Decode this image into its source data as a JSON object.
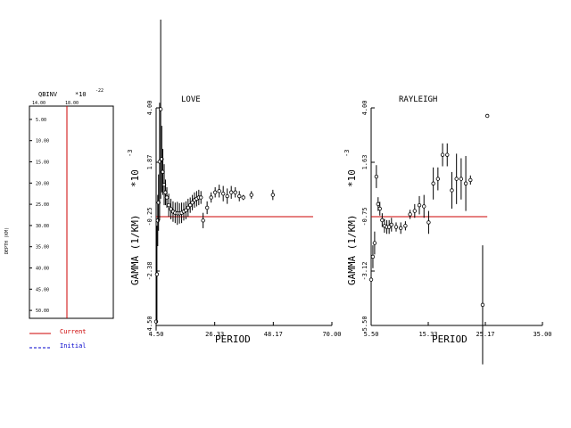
{
  "colors": {
    "current": "#cc0000",
    "initial": "#0000cc",
    "axis": "#000000"
  },
  "qbinv": {
    "title": "QBINV",
    "exponent": "*10",
    "exponent_power": "-22",
    "x_ticks": [
      "14.00",
      "18.00"
    ],
    "ylabel": "DEPTH (KM)",
    "y_ticks": [
      "5.00",
      "10.00",
      "15.00",
      "20.00",
      "25.00",
      "30.00",
      "35.00",
      "40.00",
      "45.00",
      "50.00"
    ]
  },
  "legend": {
    "current": "Current",
    "initial": "Initial"
  },
  "chart_data": [
    {
      "type": "line",
      "title": "QBINV",
      "xlabel": "",
      "ylabel": "DEPTH (KM)",
      "xlim": [
        14.0,
        20.0
      ],
      "ylim": [
        50.0,
        0.0
      ],
      "series": [
        {
          "name": "Current",
          "x": [
            18.0,
            18.0
          ],
          "y": [
            0.0,
            50.0
          ]
        }
      ]
    },
    {
      "type": "scatter",
      "title": "LOVE",
      "xlabel": "PERIOD",
      "ylabel": "GAMMA (1/KM)",
      "y_exponent": "*10",
      "y_exponent_power": "-3",
      "xlim": [
        4.5,
        70.0
      ],
      "ylim": [
        -4.5,
        4.0
      ],
      "x_ticks": [
        "4.50",
        "26.33",
        "48.17",
        "70.00"
      ],
      "y_ticks": [
        "-4.50",
        "-2.38",
        "-0.25",
        "1.87",
        "4.00"
      ],
      "observed": [
        {
          "x": 4.5,
          "y": -4.35,
          "e": 0.35
        },
        {
          "x": 4.8,
          "y": -2.5,
          "e": 1.9
        },
        {
          "x": 5.1,
          "y": -0.4,
          "e": 1.0
        },
        {
          "x": 5.4,
          "y": 0.3,
          "e": 1.1
        },
        {
          "x": 5.8,
          "y": 1.9,
          "e": 2.3
        },
        {
          "x": 6.2,
          "y": 3.95,
          "e": 3.5
        },
        {
          "x": 6.6,
          "y": 2.0,
          "e": 1.3
        },
        {
          "x": 7.0,
          "y": 1.5,
          "e": 0.9
        },
        {
          "x": 7.5,
          "y": 1.0,
          "e": 0.8
        },
        {
          "x": 8.0,
          "y": 0.7,
          "e": 0.5
        },
        {
          "x": 8.5,
          "y": 0.5,
          "e": 0.4
        },
        {
          "x": 9.2,
          "y": 0.2,
          "e": 0.45
        },
        {
          "x": 10.0,
          "y": 0.05,
          "e": 0.4
        },
        {
          "x": 10.8,
          "y": -0.05,
          "e": 0.4
        },
        {
          "x": 11.6,
          "y": -0.1,
          "e": 0.4
        },
        {
          "x": 12.4,
          "y": -0.12,
          "e": 0.45
        },
        {
          "x": 13.2,
          "y": -0.12,
          "e": 0.4
        },
        {
          "x": 14.0,
          "y": -0.1,
          "e": 0.4
        },
        {
          "x": 14.8,
          "y": -0.05,
          "e": 0.35
        },
        {
          "x": 15.6,
          "y": 0.0,
          "e": 0.35
        },
        {
          "x": 16.4,
          "y": 0.1,
          "e": 0.35
        },
        {
          "x": 17.2,
          "y": 0.2,
          "e": 0.3
        },
        {
          "x": 18.0,
          "y": 0.3,
          "e": 0.3
        },
        {
          "x": 18.8,
          "y": 0.4,
          "e": 0.3
        },
        {
          "x": 19.6,
          "y": 0.45,
          "e": 0.3
        },
        {
          "x": 20.4,
          "y": 0.5,
          "e": 0.3
        },
        {
          "x": 21.2,
          "y": 0.5,
          "e": 0.25
        },
        {
          "x": 22.0,
          "y": -0.4,
          "e": 0.3
        },
        {
          "x": 23.5,
          "y": 0.1,
          "e": 0.25
        },
        {
          "x": 25.0,
          "y": 0.5,
          "e": 0.2
        },
        {
          "x": 26.5,
          "y": 0.7,
          "e": 0.2
        },
        {
          "x": 28.0,
          "y": 0.75,
          "e": 0.25
        },
        {
          "x": 29.5,
          "y": 0.65,
          "e": 0.3
        },
        {
          "x": 31.0,
          "y": 0.55,
          "e": 0.3
        },
        {
          "x": 32.5,
          "y": 0.7,
          "e": 0.25
        },
        {
          "x": 34.0,
          "y": 0.7,
          "e": 0.2
        },
        {
          "x": 35.5,
          "y": 0.55,
          "e": 0.2
        },
        {
          "x": 37.0,
          "y": 0.5,
          "e": 0.1
        },
        {
          "x": 40.0,
          "y": 0.6,
          "e": 0.15
        },
        {
          "x": 48.0,
          "y": 0.6,
          "e": 0.2
        }
      ],
      "series": [
        {
          "name": "Current",
          "x": [
            4.5,
            63.0
          ],
          "y": [
            -0.25,
            -0.25
          ]
        }
      ]
    },
    {
      "type": "scatter",
      "title": "RAYLEIGH",
      "xlabel": "PERIOD",
      "ylabel": "GAMMA (1/KM)",
      "y_exponent": "*10",
      "y_exponent_power": "-3",
      "xlim": [
        5.5,
        35.0
      ],
      "ylim": [
        -5.5,
        4.0
      ],
      "x_ticks": [
        "5.50",
        "15.33",
        "25.17",
        "35.00"
      ],
      "y_ticks": [
        "-5.50",
        "-3.12",
        "-0.75",
        "1.63",
        "4.00"
      ],
      "observed": [
        {
          "x": 5.5,
          "y": -3.5,
          "e": 0.6
        },
        {
          "x": 5.8,
          "y": -2.5,
          "e": 0.5
        },
        {
          "x": 6.1,
          "y": -1.9,
          "e": 0.5
        },
        {
          "x": 6.4,
          "y": 1.0,
          "e": 0.5
        },
        {
          "x": 6.7,
          "y": -0.2,
          "e": 0.3
        },
        {
          "x": 7.0,
          "y": -0.4,
          "e": 0.3
        },
        {
          "x": 7.4,
          "y": -0.9,
          "e": 0.3
        },
        {
          "x": 7.8,
          "y": -1.15,
          "e": 0.3
        },
        {
          "x": 8.2,
          "y": -1.2,
          "e": 0.3
        },
        {
          "x": 8.6,
          "y": -1.2,
          "e": 0.3
        },
        {
          "x": 9.0,
          "y": -1.1,
          "e": 0.3
        },
        {
          "x": 9.8,
          "y": -1.2,
          "e": 0.2
        },
        {
          "x": 10.6,
          "y": -1.25,
          "e": 0.25
        },
        {
          "x": 11.4,
          "y": -1.15,
          "e": 0.2
        },
        {
          "x": 12.2,
          "y": -0.65,
          "e": 0.2
        },
        {
          "x": 13.0,
          "y": -0.5,
          "e": 0.3
        },
        {
          "x": 13.8,
          "y": -0.25,
          "e": 0.4
        },
        {
          "x": 14.6,
          "y": -0.3,
          "e": 0.5
        },
        {
          "x": 15.4,
          "y": -1.0,
          "e": 0.5
        },
        {
          "x": 16.2,
          "y": 0.7,
          "e": 0.7
        },
        {
          "x": 17.0,
          "y": 0.9,
          "e": 0.5
        },
        {
          "x": 17.8,
          "y": 1.95,
          "e": 0.5
        },
        {
          "x": 18.6,
          "y": 1.95,
          "e": 0.5
        },
        {
          "x": 19.4,
          "y": 0.4,
          "e": 0.8
        },
        {
          "x": 20.2,
          "y": 0.9,
          "e": 1.1
        },
        {
          "x": 21.0,
          "y": 0.9,
          "e": 0.9
        },
        {
          "x": 21.8,
          "y": 0.7,
          "e": 1.2
        },
        {
          "x": 22.6,
          "y": 0.85,
          "e": 0.2
        },
        {
          "x": 24.7,
          "y": -4.6,
          "e": 2.6
        },
        {
          "x": 25.5,
          "y": 3.65,
          "e": 0.0
        }
      ],
      "series": [
        {
          "name": "Current",
          "x": [
            5.5,
            25.5
          ],
          "y": [
            -0.75,
            -0.75
          ]
        }
      ]
    }
  ]
}
